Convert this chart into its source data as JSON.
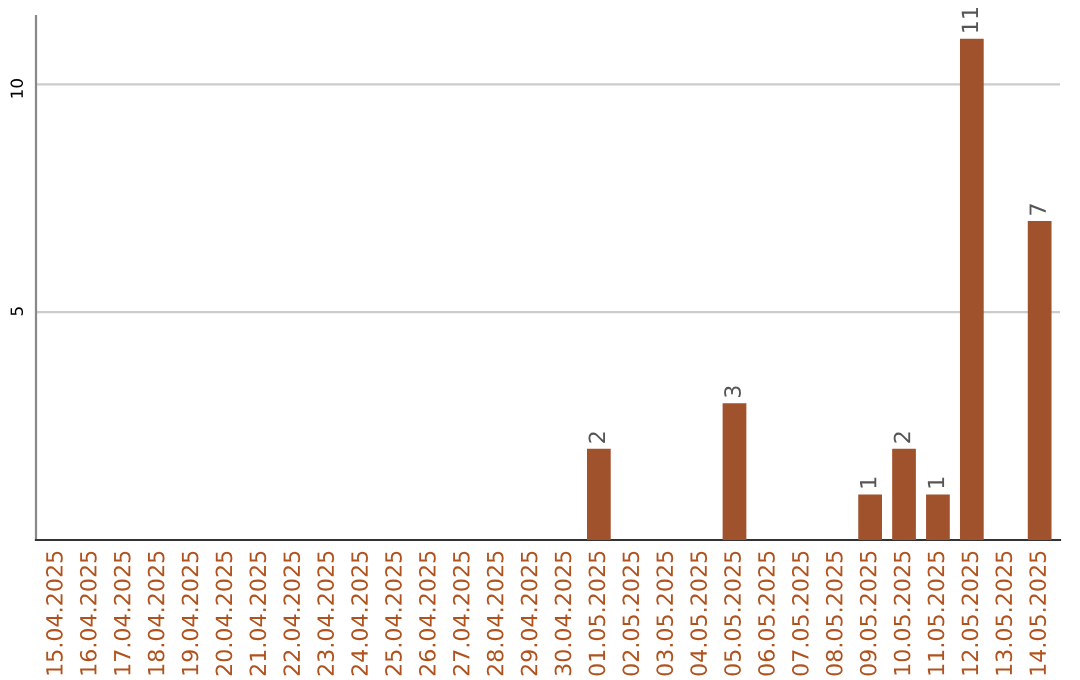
{
  "chart_data": {
    "type": "bar",
    "categories": [
      "15.04.2025",
      "16.04.2025",
      "17.04.2025",
      "18.04.2025",
      "19.04.2025",
      "20.04.2025",
      "21.04.2025",
      "22.04.2025",
      "23.04.2025",
      "24.04.2025",
      "25.04.2025",
      "26.04.2025",
      "27.04.2025",
      "28.04.2025",
      "29.04.2025",
      "30.04.2025",
      "01.05.2025",
      "02.05.2025",
      "03.05.2025",
      "04.05.2025",
      "05.05.2025",
      "06.05.2025",
      "07.05.2025",
      "08.05.2025",
      "09.05.2025",
      "10.05.2025",
      "11.05.2025",
      "12.05.2025",
      "13.05.2025",
      "14.05.2025"
    ],
    "values": [
      0,
      0,
      0,
      0,
      0,
      0,
      0,
      0,
      0,
      0,
      0,
      0,
      0,
      0,
      0,
      0,
      2,
      0,
      0,
      0,
      3,
      0,
      0,
      0,
      1,
      2,
      1,
      11,
      0,
      7
    ],
    "value_labels": [
      null,
      null,
      null,
      null,
      null,
      null,
      null,
      null,
      null,
      null,
      null,
      null,
      null,
      null,
      null,
      null,
      "2",
      null,
      null,
      null,
      "3",
      null,
      null,
      null,
      "1",
      "2",
      "1",
      "11",
      null,
      "7"
    ],
    "color": "#a0522d",
    "ylim": [
      0,
      11.5
    ],
    "yticks": [
      5,
      10
    ],
    "grid": "y"
  }
}
